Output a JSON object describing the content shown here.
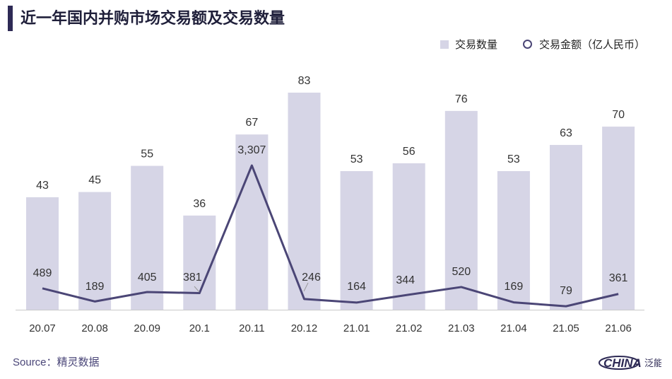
{
  "title": "近一年国内并购市场交易额及交易数量",
  "legend": {
    "bar_label": "交易数量",
    "line_label": "交易金额（亿人民币）"
  },
  "source": "Source：精灵数据",
  "logo_text": "HINA",
  "colors": {
    "bar": "#d6d5e6",
    "line": "#4b4676",
    "title_bar": "#2e2a55",
    "axis": "#c9c9c9"
  },
  "chart_data": {
    "type": "bar",
    "title": "近一年国内并购市场交易额及交易数量",
    "categories": [
      "20.07",
      "20.08",
      "20.09",
      "20.1",
      "20.11",
      "20.12",
      "21.01",
      "21.02",
      "21.03",
      "21.04",
      "21.05",
      "21.06"
    ],
    "series": [
      {
        "name": "交易数量",
        "type": "bar",
        "values": [
          43,
          45,
          55,
          36,
          67,
          83,
          53,
          56,
          76,
          53,
          63,
          70
        ]
      },
      {
        "name": "交易金额（亿人民币）",
        "type": "line",
        "values": [
          489,
          189,
          405,
          381,
          3307,
          246,
          164,
          344,
          520,
          169,
          79,
          361
        ],
        "labels": [
          "489",
          "189",
          "405",
          "381",
          "3,307",
          "246",
          "164",
          "344",
          "520",
          "169",
          "79",
          "361"
        ]
      }
    ],
    "xlabel": "",
    "ylabel": "",
    "grid": false,
    "legend_position": "top-right"
  }
}
